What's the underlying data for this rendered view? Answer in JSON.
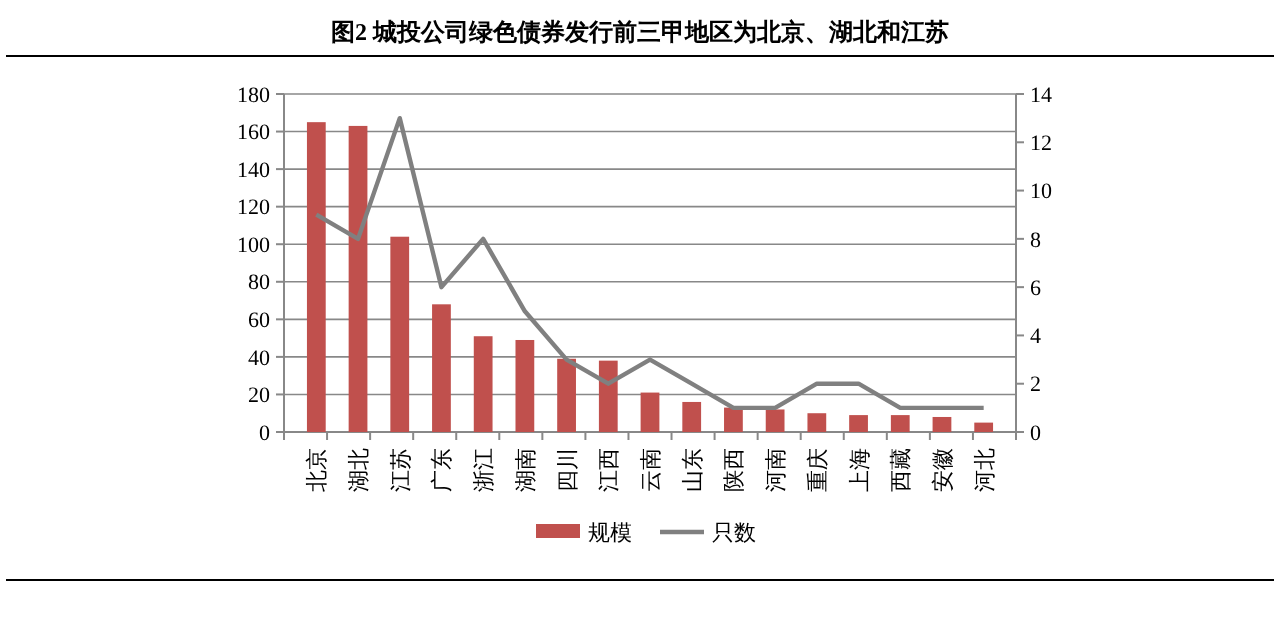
{
  "chart_data": {
    "type": "bar",
    "title": "图2    城投公司绿色债券发行前三甲地区为北京、湖北和江苏",
    "categories": [
      "北京",
      "湖北",
      "江苏",
      "广东",
      "浙江",
      "湖南",
      "四川",
      "江西",
      "云南",
      "山东",
      "陕西",
      "河南",
      "重庆",
      "上海",
      "西藏",
      "安徽",
      "河北"
    ],
    "series": [
      {
        "name": "规模",
        "color": "#c0504d",
        "values": [
          165,
          163,
          104,
          68,
          51,
          49,
          39,
          38,
          21,
          16,
          13,
          12,
          10,
          9,
          9,
          8,
          5
        ]
      },
      {
        "name": "只数",
        "type": "line",
        "axis": "y2",
        "color": "#808080",
        "values": [
          9,
          8,
          13,
          6,
          8,
          5,
          3,
          2,
          3,
          2,
          1,
          1,
          2,
          2,
          1,
          1,
          1
        ]
      }
    ],
    "ylim": [
      0,
      180
    ],
    "yticks": [
      0,
      20,
      40,
      60,
      80,
      100,
      120,
      140,
      160,
      180
    ],
    "y2lim": [
      0,
      14
    ],
    "y2ticks": [
      0,
      2,
      4,
      6,
      8,
      10,
      12,
      14
    ],
    "grid": "y",
    "legend": "bottom",
    "marker": "none",
    "line_style": "solid"
  }
}
